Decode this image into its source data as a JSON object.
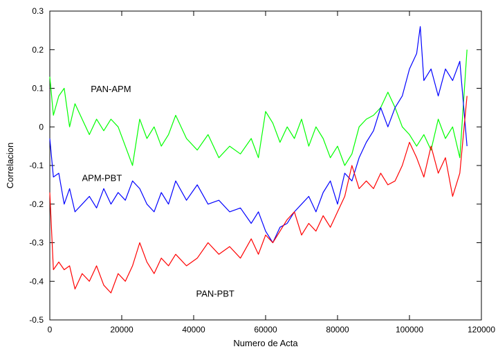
{
  "chart_data": {
    "type": "line",
    "title": "",
    "xlabel": "Numero de Acta",
    "ylabel": "Correlacion",
    "xlim": [
      0,
      120000
    ],
    "ylim": [
      -0.5,
      0.3
    ],
    "xticks": [
      0,
      20000,
      40000,
      60000,
      80000,
      100000,
      120000
    ],
    "yticks": [
      -0.5,
      -0.4,
      -0.3,
      -0.2,
      -0.1,
      0,
      0.1,
      0.2,
      0.3
    ],
    "xtick_labels": [
      "0",
      "20000",
      "40000",
      "60000",
      "80000",
      "100000",
      "120000"
    ],
    "ytick_labels": [
      "-0.5",
      "-0.4",
      "-0.3",
      "-0.2",
      "-0.1",
      "0",
      "0.1",
      "0.2",
      "0.3"
    ],
    "grid": false,
    "legend": "none",
    "series": [
      {
        "name": "PAN-APM",
        "color": "#00ff00",
        "x": [
          0,
          1000,
          2500,
          4000,
          5500,
          7000,
          9000,
          11000,
          13000,
          15000,
          17000,
          19000,
          21000,
          23000,
          25000,
          27000,
          29000,
          31000,
          33000,
          35000,
          38000,
          41000,
          44000,
          47000,
          50000,
          53000,
          56000,
          58000,
          60000,
          62000,
          64000,
          66000,
          68000,
          70000,
          72000,
          74000,
          76000,
          78000,
          80000,
          82000,
          84000,
          86000,
          88000,
          90000,
          92000,
          94000,
          96000,
          98000,
          100000,
          102000,
          104000,
          106000,
          108000,
          110000,
          112000,
          114000,
          116000
        ],
        "values": [
          0.13,
          0.03,
          0.08,
          0.1,
          0.0,
          0.06,
          0.02,
          -0.02,
          0.02,
          -0.01,
          0.02,
          0.0,
          -0.05,
          -0.1,
          0.02,
          -0.03,
          0.0,
          -0.05,
          -0.02,
          0.03,
          -0.03,
          -0.06,
          -0.02,
          -0.08,
          -0.05,
          -0.07,
          -0.03,
          -0.08,
          0.04,
          0.01,
          -0.04,
          0.0,
          -0.03,
          0.02,
          -0.05,
          0.0,
          -0.03,
          -0.08,
          -0.05,
          -0.1,
          -0.07,
          0.0,
          0.02,
          0.03,
          0.05,
          0.09,
          0.05,
          0.0,
          -0.02,
          -0.05,
          -0.02,
          -0.06,
          0.02,
          -0.03,
          0.0,
          -0.08,
          0.2
        ]
      },
      {
        "name": "APM-PBT",
        "color": "#0000ff",
        "x": [
          0,
          1000,
          2500,
          4000,
          5500,
          7000,
          9000,
          11000,
          13000,
          15000,
          17000,
          19000,
          21000,
          23000,
          25000,
          27000,
          29000,
          31000,
          33000,
          35000,
          38000,
          41000,
          44000,
          47000,
          50000,
          53000,
          56000,
          58000,
          60000,
          62000,
          64000,
          66000,
          68000,
          70000,
          72000,
          74000,
          76000,
          78000,
          80000,
          82000,
          84000,
          86000,
          88000,
          90000,
          92000,
          94000,
          96000,
          98000,
          100000,
          102000,
          103000,
          104000,
          106000,
          108000,
          110000,
          112000,
          114000,
          116000
        ],
        "values": [
          -0.03,
          -0.13,
          -0.12,
          -0.2,
          -0.16,
          -0.22,
          -0.2,
          -0.18,
          -0.21,
          -0.16,
          -0.2,
          -0.17,
          -0.19,
          -0.14,
          -0.16,
          -0.2,
          -0.22,
          -0.17,
          -0.2,
          -0.14,
          -0.19,
          -0.15,
          -0.2,
          -0.19,
          -0.22,
          -0.21,
          -0.25,
          -0.22,
          -0.27,
          -0.3,
          -0.26,
          -0.25,
          -0.22,
          -0.2,
          -0.18,
          -0.22,
          -0.17,
          -0.14,
          -0.2,
          -0.12,
          -0.14,
          -0.08,
          -0.04,
          -0.01,
          0.05,
          0.0,
          0.05,
          0.08,
          0.15,
          0.19,
          0.26,
          0.12,
          0.15,
          0.08,
          0.15,
          0.12,
          0.17,
          -0.05
        ]
      },
      {
        "name": "PAN-PBT",
        "color": "#ff0000",
        "x": [
          0,
          1000,
          2500,
          4000,
          5500,
          7000,
          9000,
          11000,
          13000,
          15000,
          17000,
          19000,
          21000,
          23000,
          25000,
          27000,
          29000,
          31000,
          33000,
          35000,
          38000,
          41000,
          44000,
          47000,
          50000,
          53000,
          56000,
          58000,
          60000,
          62000,
          64000,
          66000,
          68000,
          70000,
          72000,
          74000,
          76000,
          78000,
          80000,
          82000,
          84000,
          86000,
          88000,
          90000,
          92000,
          94000,
          96000,
          98000,
          100000,
          102000,
          104000,
          106000,
          108000,
          110000,
          112000,
          114000,
          116000
        ],
        "values": [
          -0.17,
          -0.37,
          -0.35,
          -0.37,
          -0.36,
          -0.42,
          -0.38,
          -0.4,
          -0.36,
          -0.41,
          -0.43,
          -0.38,
          -0.4,
          -0.36,
          -0.3,
          -0.35,
          -0.38,
          -0.34,
          -0.36,
          -0.33,
          -0.36,
          -0.34,
          -0.3,
          -0.33,
          -0.31,
          -0.34,
          -0.29,
          -0.33,
          -0.28,
          -0.3,
          -0.27,
          -0.24,
          -0.22,
          -0.28,
          -0.25,
          -0.27,
          -0.23,
          -0.26,
          -0.22,
          -0.18,
          -0.1,
          -0.16,
          -0.14,
          -0.16,
          -0.12,
          -0.15,
          -0.14,
          -0.1,
          -0.04,
          -0.08,
          -0.13,
          -0.05,
          -0.12,
          -0.08,
          -0.18,
          -0.12,
          0.08
        ]
      }
    ],
    "annotations": [
      {
        "text": "PAN-APM",
        "x": 17000,
        "y": 0.09
      },
      {
        "text": "APM-PBT",
        "x": 14500,
        "y": -0.14
      },
      {
        "text": "PAN-PBT",
        "x": 46000,
        "y": -0.44
      }
    ]
  }
}
